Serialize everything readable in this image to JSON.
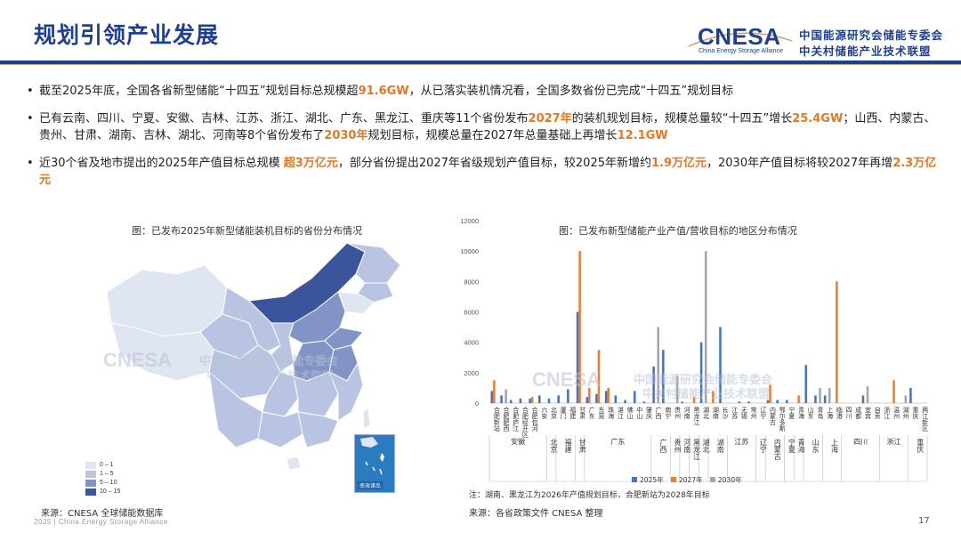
{
  "header": {
    "title": "规划引领产业发展",
    "logo_mark": "CNESA",
    "logo_sub": "China Energy Storage Alliance",
    "logo_cn_line1": "中国能源研究会储能专委会",
    "logo_cn_line2": "中关村储能产业技术联盟"
  },
  "colors": {
    "brand_blue": "#1f3f8f",
    "highlight_orange": "#e87722",
    "series_2025": "#4472c4",
    "series_2027": "#ed7d31",
    "series_2030": "#a5a5a5"
  },
  "bullets": [
    {
      "segments": [
        {
          "text": "截至2025年底，全国各省新型储能“十四五”规划目标总规模超",
          "hl": false
        },
        {
          "text": "91.6GW",
          "hl": true
        },
        {
          "text": "，从已落实装机情况看，全国多数省份已完成“十四五”规划目标",
          "hl": false
        }
      ]
    },
    {
      "segments": [
        {
          "text": "已有云南、四川、宁夏、安徽、吉林、江苏、浙江、湖北、广东、黑龙江、重庆等11个省份发布",
          "hl": false
        },
        {
          "text": "2027年",
          "hl": true
        },
        {
          "text": "的装机规划目标，规模总量较“十四五”增长",
          "hl": false
        },
        {
          "text": "25.4GW",
          "hl": true
        },
        {
          "text": "；山西、内蒙古、贵州、甘肃、湖南、吉林、湖北、河南等8个省份发布了",
          "hl": false
        },
        {
          "text": "2030年",
          "hl": true
        },
        {
          "text": "规划目标，规模总量在2027年总量基础上再增长",
          "hl": false
        },
        {
          "text": "12.1GW",
          "hl": true
        }
      ]
    },
    {
      "segments": [
        {
          "text": "近30个省及地市提出的2025年产值目标总规模 ",
          "hl": false
        },
        {
          "text": "超3万亿元",
          "hl": true
        },
        {
          "text": "，部分省份提出2027年省级规划产值目标，较2025年新增约",
          "hl": false
        },
        {
          "text": "1.9万亿元",
          "hl": true
        },
        {
          "text": "，2030年产值目标将较2027年再增",
          "hl": false
        },
        {
          "text": "2.3万亿元",
          "hl": true
        }
      ]
    }
  ],
  "map": {
    "caption": "图：已发布2025年新型储能装机目标的省份分布情况",
    "legend": [
      {
        "label": "0 – 1",
        "color": "#dfe5f1"
      },
      {
        "label": "1 – 5",
        "color": "#b8c4e2"
      },
      {
        "label": "5 – 10",
        "color": "#8294c6"
      },
      {
        "label": "10 – 15",
        "color": "#3a559c"
      }
    ],
    "inset_label": "南海诸岛",
    "watermark_en": "CNESA",
    "watermark_cn": "中国能源研究会储能专委会",
    "watermark_cn2": "中关村储能产业技术联盟",
    "source": "来源：CNESA 全球储能数据库"
  },
  "chart": {
    "caption": "图：已发布新型储能产业产值/营收目标的地区分布情况",
    "note": "注：湖南、黑龙江为2026年产值规划目标，合肥新站为2028年目标",
    "source": "来源：各省政策文件   CNESA 整理",
    "watermark_en": "CNESA",
    "watermark_cn": "中国能源研究会储能专委会",
    "watermark_cn2": "中关村储能产业技术联盟"
  },
  "chart_data": {
    "type": "bar",
    "title": "",
    "xlabel": "",
    "ylabel": "",
    "ylim": [
      0,
      12000
    ],
    "yticks": [
      0,
      2000,
      4000,
      6000,
      8000,
      10000,
      12000
    ],
    "legend_position": "bottom",
    "grid": false,
    "categories": [
      "合肥新站",
      "合肥肥西",
      "合肥庐江",
      "合肥经开区",
      "合肥包河",
      "六安",
      "北京",
      "厦门",
      "福建",
      "甘肃",
      "广东",
      "东莞",
      "珠海",
      "湛江",
      "佛山",
      "中山",
      "肇庆",
      "广西",
      "南宁",
      "贵州",
      "河南",
      "黑龙江",
      "湖北",
      "湖南",
      "长沙",
      "江苏",
      "无锡",
      "常州",
      "辽宁",
      "内蒙古",
      "鄂尔多斯",
      "宁夏",
      "青海",
      "山东",
      "青岛",
      "上海",
      "临港",
      "四川",
      "成都",
      "宜宾",
      "自贡",
      "浙江",
      "温州",
      "湖州",
      "重庆",
      "两江新区"
    ],
    "groups": [
      {
        "name": "安徽",
        "count": 6
      },
      {
        "name": "北京",
        "count": 1
      },
      {
        "name": "福建",
        "count": 2
      },
      {
        "name": "甘肃",
        "count": 1
      },
      {
        "name": "广东",
        "count": 7
      },
      {
        "name": "广西",
        "count": 2
      },
      {
        "name": "贵州",
        "count": 1
      },
      {
        "name": "河南",
        "count": 1
      },
      {
        "name": "黑龙江",
        "count": 1
      },
      {
        "name": "湖北",
        "count": 1
      },
      {
        "name": "湖南",
        "count": 2
      },
      {
        "name": "江苏",
        "count": 3
      },
      {
        "name": "辽宁",
        "count": 1
      },
      {
        "name": "内蒙古",
        "count": 2
      },
      {
        "name": "宁夏",
        "count": 1
      },
      {
        "name": "青海",
        "count": 1
      },
      {
        "name": "山东",
        "count": 2
      },
      {
        "name": "上海",
        "count": 2
      },
      {
        "name": "四川",
        "count": 4
      },
      {
        "name": "浙江",
        "count": 3
      },
      {
        "name": "重庆",
        "count": 2
      }
    ],
    "series": [
      {
        "name": "2025年",
        "color": "#4472c4",
        "values": [
          800,
          500,
          200,
          300,
          300,
          500,
          300,
          500,
          900,
          6000,
          400,
          600,
          800,
          500,
          200,
          800,
          100,
          2400,
          3500,
          0,
          100,
          0,
          4000,
          0,
          5000,
          0,
          100,
          100,
          0,
          200,
          200,
          200,
          0,
          2500,
          500,
          500,
          0,
          0,
          0,
          500,
          0,
          0,
          0,
          0,
          1000,
          0
        ]
      },
      {
        "name": "2027年",
        "color": "#ed7d31",
        "values": [
          1500,
          0,
          0,
          0,
          400,
          0,
          0,
          0,
          0,
          10000,
          1000,
          3500,
          1000,
          0,
          0,
          0,
          0,
          0,
          0,
          0,
          0,
          400,
          0,
          800,
          0,
          0,
          0,
          0,
          0,
          1200,
          0,
          0,
          500,
          0,
          0,
          0,
          8000,
          0,
          0,
          0,
          0,
          0,
          1500,
          0,
          0,
          0
        ]
      },
      {
        "name": "2030年",
        "color": "#a5a5a5",
        "values": [
          0,
          900,
          0,
          0,
          0,
          0,
          0,
          0,
          0,
          0,
          0,
          0,
          0,
          0,
          0,
          0,
          0,
          5000,
          0,
          1800,
          0,
          0,
          10000,
          0,
          0,
          0,
          0,
          0,
          0,
          0,
          0,
          0,
          0,
          0,
          1000,
          1000,
          0,
          0,
          0,
          1100,
          0,
          0,
          0,
          500,
          0,
          0
        ]
      }
    ]
  },
  "footer": {
    "text": "2025 | China Energy Storage Alliance",
    "page": "17"
  }
}
